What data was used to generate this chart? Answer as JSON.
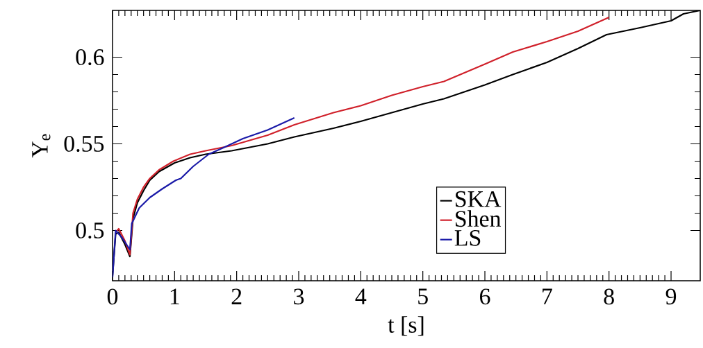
{
  "chart_data": {
    "type": "line",
    "xlabel": "t [s]",
    "ylabel": "Y$_{e}$",
    "xlim": [
      0,
      9.47
    ],
    "ylim": [
      0.471,
      0.627
    ],
    "xticks": [
      0,
      1,
      2,
      3,
      4,
      5,
      6,
      7,
      8,
      9
    ],
    "yticks": [
      0.5,
      0.55,
      0.6
    ],
    "legend": "bottom",
    "grid": false,
    "marker": "none",
    "line_style": "solid",
    "series": [
      {
        "name": "SKA",
        "color": "#000000",
        "x": [
          0,
          0.05,
          0.1,
          0.2,
          0.28,
          0.33,
          0.4,
          0.5,
          0.6,
          0.75,
          1,
          1.25,
          1.5,
          1.92,
          2.5,
          2.93,
          3.56,
          4,
          4.5,
          5,
          5.34,
          6,
          6.45,
          7,
          7.5,
          7.96,
          8.5,
          9,
          9.2,
          9.47
        ],
        "values": [
          0.474,
          0.498,
          0.499,
          0.492,
          0.485,
          0.507,
          0.516,
          0.523,
          0.529,
          0.534,
          0.539,
          0.542,
          0.544,
          0.546,
          0.55,
          0.554,
          0.559,
          0.563,
          0.568,
          0.573,
          0.576,
          0.584,
          0.59,
          0.597,
          0.605,
          0.613,
          0.617,
          0.621,
          0.625,
          0.627
        ]
      },
      {
        "name": "Shen",
        "color": "#d0202a",
        "x": [
          0.05,
          0.1,
          0.2,
          0.28,
          0.33,
          0.4,
          0.5,
          0.6,
          0.75,
          0.98,
          1.25,
          1.5,
          1.92,
          2.5,
          2.93,
          3.56,
          4,
          4.5,
          5,
          5.34,
          6,
          6.45,
          7,
          7.5,
          8
        ],
        "values": [
          0.499,
          0.501,
          0.494,
          0.486,
          0.51,
          0.518,
          0.525,
          0.53,
          0.535,
          0.54,
          0.544,
          0.546,
          0.549,
          0.555,
          0.561,
          0.568,
          0.572,
          0.578,
          0.583,
          0.586,
          0.596,
          0.603,
          0.609,
          0.615,
          0.623
        ]
      },
      {
        "name": "LS",
        "color": "#1a1aa8",
        "x": [
          0,
          0.05,
          0.15,
          0.28,
          0.31,
          0.43,
          0.6,
          0.8,
          1.02,
          1.1,
          1.3,
          1.55,
          1.8,
          2.1,
          2.5,
          2.93
        ],
        "values": [
          0.473,
          0.5,
          0.496,
          0.489,
          0.504,
          0.513,
          0.519,
          0.524,
          0.529,
          0.53,
          0.537,
          0.544,
          0.548,
          0.553,
          0.558,
          0.565
        ]
      }
    ]
  }
}
